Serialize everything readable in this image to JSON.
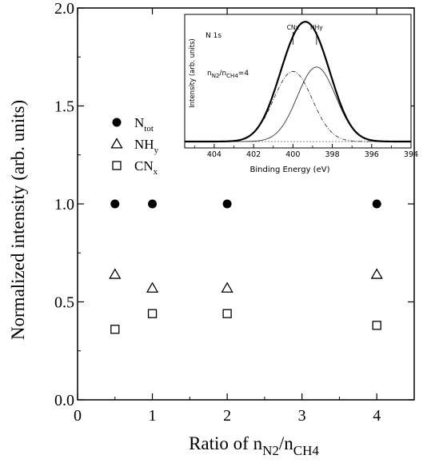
{
  "chart_data": [
    {
      "type": "scatter",
      "xlabel_base": "Ratio of n",
      "xlabel_sub1": "N2",
      "xlabel_mid": "/n",
      "xlabel_sub2": "CH4",
      "ylabel": "Normalized intensity (arb. units)",
      "xlim": [
        0,
        4.5
      ],
      "ylim": [
        0.0,
        2.0
      ],
      "xticks": [
        {
          "value": 0,
          "label": "0"
        },
        {
          "value": 1,
          "label": "1"
        },
        {
          "value": 2,
          "label": "2"
        },
        {
          "value": 3,
          "label": "3"
        },
        {
          "value": 4,
          "label": "4"
        }
      ],
      "yticks": [
        {
          "value": 0.0,
          "label": "0.0"
        },
        {
          "value": 0.5,
          "label": "0.5"
        },
        {
          "value": 1.0,
          "label": "1.0"
        },
        {
          "value": 1.5,
          "label": "1.5"
        },
        {
          "value": 2.0,
          "label": "2.0"
        }
      ],
      "series": [
        {
          "name": "N",
          "sub": "tot",
          "marker": "filled-circle",
          "points": [
            [
              0.5,
              1.0
            ],
            [
              1,
              1.0
            ],
            [
              2,
              1.0
            ],
            [
              4,
              1.0
            ]
          ]
        },
        {
          "name": "NH",
          "sub": "y",
          "marker": "open-triangle",
          "points": [
            [
              0.5,
              0.64
            ],
            [
              1,
              0.57
            ],
            [
              2,
              0.57
            ],
            [
              4,
              0.64
            ]
          ]
        },
        {
          "name": "CN",
          "sub": "x",
          "marker": "open-square",
          "points": [
            [
              0.5,
              0.36
            ],
            [
              1,
              0.44
            ],
            [
              2,
              0.44
            ],
            [
              4,
              0.38
            ]
          ]
        }
      ],
      "legend": "upper-left"
    },
    {
      "type": "line",
      "inset": true,
      "xlabel": "Binding Energy (eV)",
      "ylabel": "Intensity (arb. units)",
      "xlim": [
        405.5,
        394
      ],
      "x_reversed": true,
      "xticks": [
        {
          "value": 404,
          "label": "404"
        },
        {
          "value": 402,
          "label": "402"
        },
        {
          "value": 400,
          "label": "400"
        },
        {
          "value": 398,
          "label": "398"
        },
        {
          "value": 396,
          "label": "396"
        },
        {
          "value": 394,
          "label": "394"
        }
      ],
      "annotation_title": "N 1s",
      "annotation_ratio_base": "n",
      "annotation_ratio_sub1": "N2",
      "annotation_ratio_mid": "/n",
      "annotation_ratio_sub2": "CH4",
      "annotation_ratio_value": "=4",
      "peak_labels": [
        {
          "text": "CNx",
          "x": 400.0
        },
        {
          "text": "NHy",
          "x": 398.8
        }
      ],
      "peaks": [
        {
          "name": "CNx",
          "center": 400.0,
          "height": 0.64,
          "fwhm": 2.3
        },
        {
          "name": "NHy",
          "center": 398.8,
          "height": 0.68,
          "fwhm": 2.3
        }
      ],
      "baseline": 0.0
    }
  ]
}
